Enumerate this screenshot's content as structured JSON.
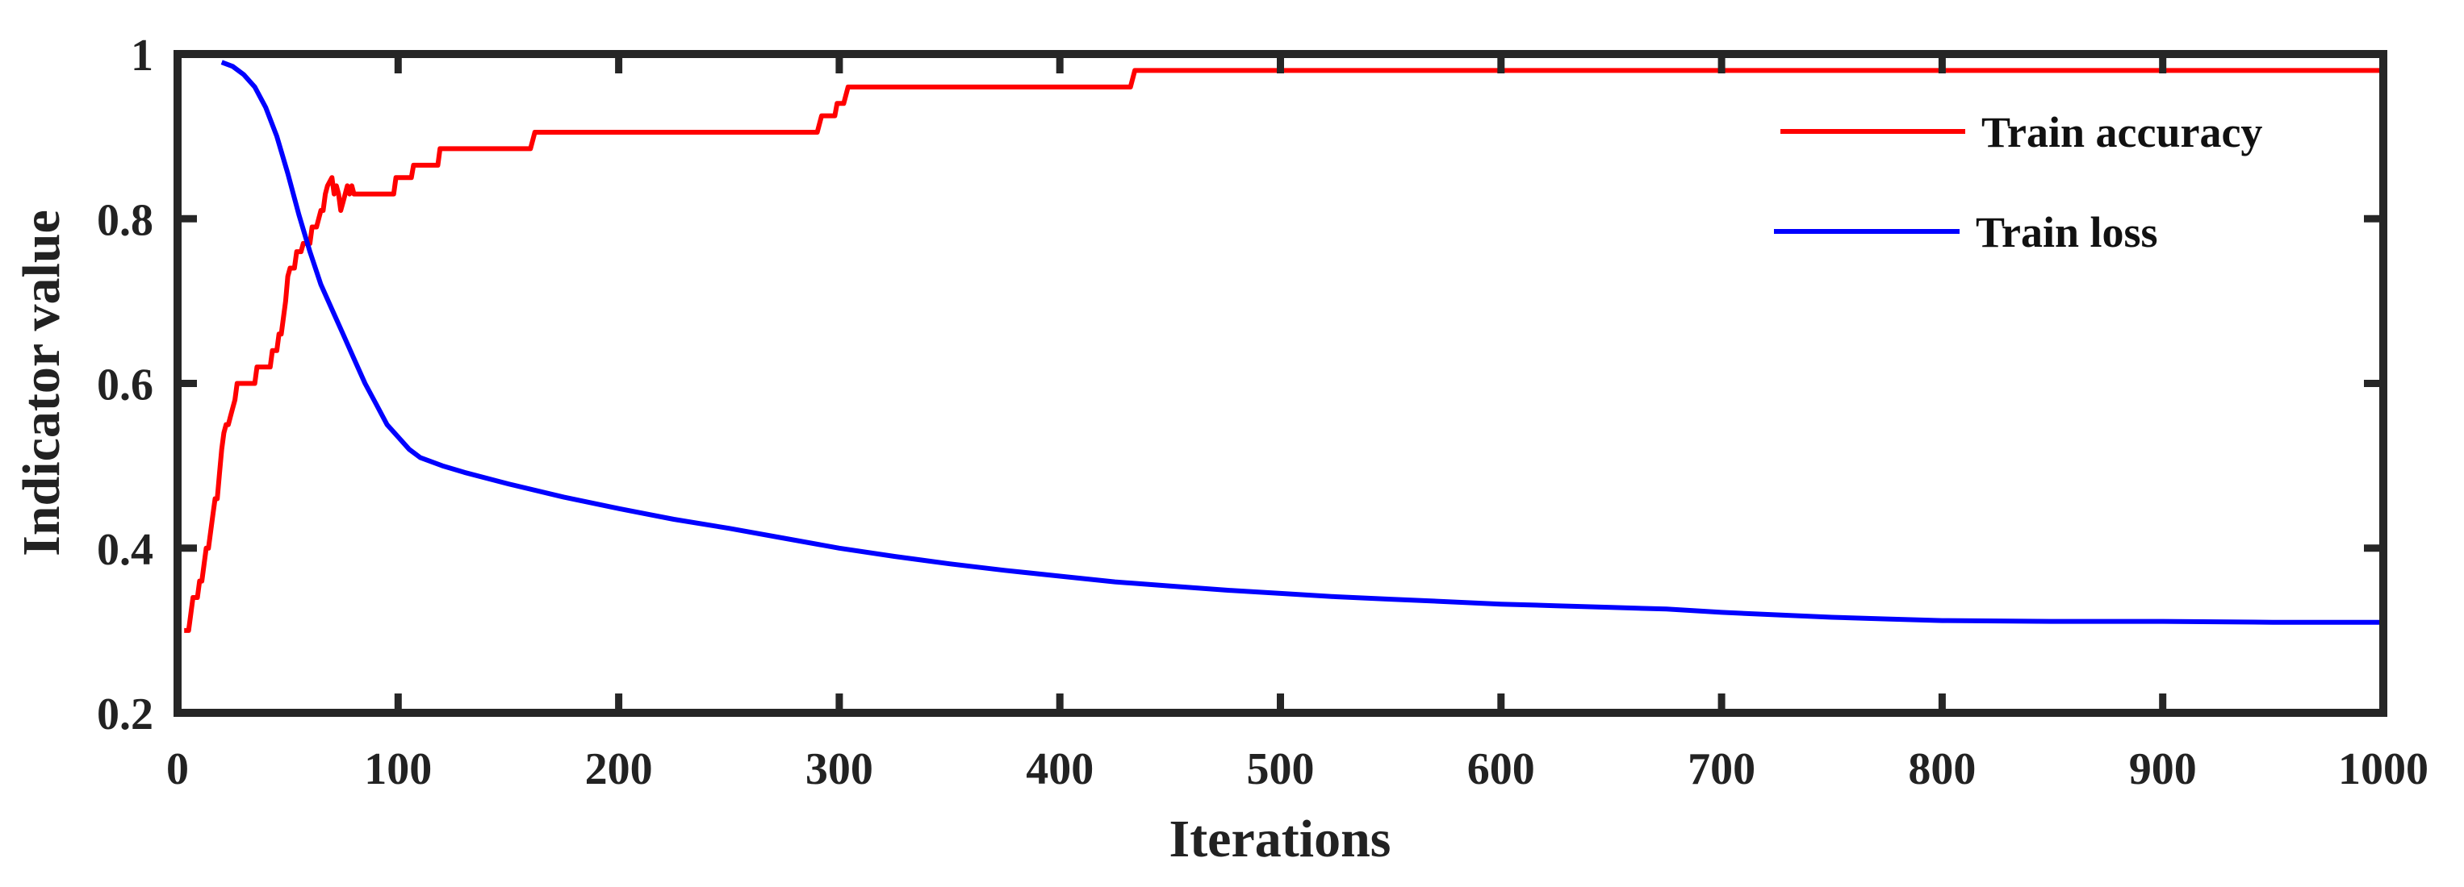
{
  "chart_data": {
    "type": "line",
    "title": "",
    "xlabel": "Iterations",
    "ylabel": "Indicator value",
    "xlim": [
      0,
      1000
    ],
    "ylim": [
      0.2,
      1.0
    ],
    "xticks": [
      0,
      100,
      200,
      300,
      400,
      500,
      600,
      700,
      800,
      900,
      1000
    ],
    "yticks": [
      0.2,
      0.4,
      0.6,
      0.8,
      1.0
    ],
    "xtick_labels": [
      "0",
      "100",
      "200",
      "300",
      "400",
      "500",
      "600",
      "700",
      "800",
      "900",
      "1000"
    ],
    "ytick_labels": [
      "0.2",
      "0.4",
      "0.6",
      "0.8",
      "1"
    ],
    "grid": false,
    "legend_position": "top-right",
    "series": [
      {
        "name": "Train accuracy",
        "color": "#ff0000",
        "points": [
          [
            3,
            0.3
          ],
          [
            5,
            0.3
          ],
          [
            6,
            0.32
          ],
          [
            7,
            0.34
          ],
          [
            9,
            0.34
          ],
          [
            10,
            0.36
          ],
          [
            11,
            0.36
          ],
          [
            12,
            0.38
          ],
          [
            13,
            0.4
          ],
          [
            14,
            0.4
          ],
          [
            15,
            0.42
          ],
          [
            16,
            0.44
          ],
          [
            17,
            0.46
          ],
          [
            18,
            0.46
          ],
          [
            19,
            0.49
          ],
          [
            20,
            0.52
          ],
          [
            21,
            0.54
          ],
          [
            22,
            0.55
          ],
          [
            23,
            0.55
          ],
          [
            24,
            0.56
          ],
          [
            25,
            0.57
          ],
          [
            26,
            0.58
          ],
          [
            27,
            0.6
          ],
          [
            28,
            0.6
          ],
          [
            35,
            0.6
          ],
          [
            36,
            0.62
          ],
          [
            42,
            0.62
          ],
          [
            43,
            0.64
          ],
          [
            45,
            0.64
          ],
          [
            46,
            0.66
          ],
          [
            47,
            0.66
          ],
          [
            48,
            0.68
          ],
          [
            49,
            0.7
          ],
          [
            50,
            0.73
          ],
          [
            51,
            0.74
          ],
          [
            53,
            0.74
          ],
          [
            54,
            0.76
          ],
          [
            56,
            0.76
          ],
          [
            57,
            0.77
          ],
          [
            60,
            0.77
          ],
          [
            61,
            0.79
          ],
          [
            63,
            0.79
          ],
          [
            64,
            0.8
          ],
          [
            65,
            0.81
          ],
          [
            66,
            0.81
          ],
          [
            67,
            0.83
          ],
          [
            68,
            0.84
          ],
          [
            70,
            0.85
          ],
          [
            71,
            0.83
          ],
          [
            72,
            0.84
          ],
          [
            73,
            0.83
          ],
          [
            74,
            0.81
          ],
          [
            75,
            0.82
          ],
          [
            76,
            0.83
          ],
          [
            77,
            0.84
          ],
          [
            78,
            0.83
          ],
          [
            79,
            0.84
          ],
          [
            80,
            0.83
          ],
          [
            98,
            0.83
          ],
          [
            99,
            0.85
          ],
          [
            106,
            0.85
          ],
          [
            107,
            0.865
          ],
          [
            118,
            0.865
          ],
          [
            119,
            0.885
          ],
          [
            160,
            0.885
          ],
          [
            162,
            0.905
          ],
          [
            290,
            0.905
          ],
          [
            292,
            0.925
          ],
          [
            298,
            0.925
          ],
          [
            299,
            0.94
          ],
          [
            302,
            0.94
          ],
          [
            304,
            0.96
          ],
          [
            432,
            0.96
          ],
          [
            434,
            0.98
          ],
          [
            1000,
            0.98
          ]
        ]
      },
      {
        "name": "Train loss",
        "color": "#0000ff",
        "points": [
          [
            20,
            0.99
          ],
          [
            25,
            0.985
          ],
          [
            30,
            0.975
          ],
          [
            35,
            0.96
          ],
          [
            40,
            0.935
          ],
          [
            45,
            0.9
          ],
          [
            50,
            0.855
          ],
          [
            55,
            0.805
          ],
          [
            60,
            0.76
          ],
          [
            65,
            0.72
          ],
          [
            70,
            0.69
          ],
          [
            75,
            0.66
          ],
          [
            80,
            0.63
          ],
          [
            85,
            0.6
          ],
          [
            90,
            0.575
          ],
          [
            95,
            0.55
          ],
          [
            100,
            0.535
          ],
          [
            105,
            0.52
          ],
          [
            110,
            0.51
          ],
          [
            120,
            0.5
          ],
          [
            130,
            0.492
          ],
          [
            150,
            0.478
          ],
          [
            175,
            0.462
          ],
          [
            200,
            0.448
          ],
          [
            225,
            0.435
          ],
          [
            250,
            0.424
          ],
          [
            275,
            0.412
          ],
          [
            300,
            0.4
          ],
          [
            325,
            0.39
          ],
          [
            350,
            0.381
          ],
          [
            375,
            0.373
          ],
          [
            400,
            0.366
          ],
          [
            425,
            0.359
          ],
          [
            450,
            0.354
          ],
          [
            475,
            0.349
          ],
          [
            500,
            0.345
          ],
          [
            525,
            0.341
          ],
          [
            550,
            0.338
          ],
          [
            575,
            0.335
          ],
          [
            600,
            0.332
          ],
          [
            625,
            0.33
          ],
          [
            650,
            0.328
          ],
          [
            675,
            0.326
          ],
          [
            700,
            0.322
          ],
          [
            725,
            0.319
          ],
          [
            750,
            0.316
          ],
          [
            775,
            0.314
          ],
          [
            800,
            0.312
          ],
          [
            850,
            0.311
          ],
          [
            900,
            0.311
          ],
          [
            950,
            0.31
          ],
          [
            1000,
            0.31
          ]
        ]
      }
    ]
  }
}
